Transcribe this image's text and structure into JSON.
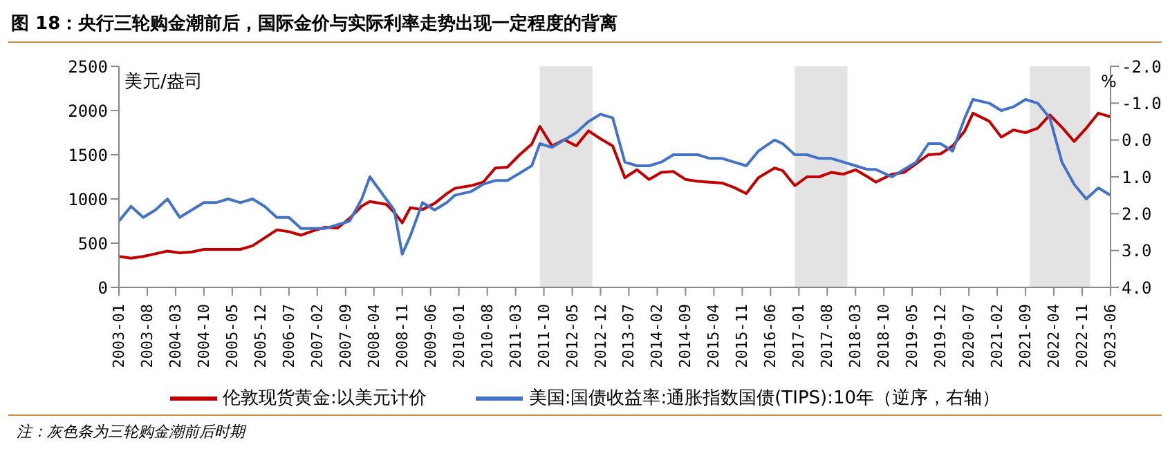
{
  "chart_data": {
    "type": "line",
    "title": "图 18：央行三轮购金潮前后，国际金价与实际利率走势出现一定程度的背离",
    "ylabel": "美元/盎司",
    "y2label": "%",
    "x": [
      "2003-01",
      "2003-04",
      "2003-07",
      "2003-10",
      "2004-01",
      "2004-04",
      "2004-07",
      "2004-10",
      "2005-01",
      "2005-04",
      "2005-07",
      "2005-10",
      "2006-01",
      "2006-04",
      "2006-07",
      "2006-10",
      "2007-01",
      "2007-04",
      "2007-07",
      "2007-10",
      "2008-01",
      "2008-03",
      "2008-07",
      "2008-09",
      "2008-11",
      "2009-01",
      "2009-04",
      "2009-07",
      "2009-10",
      "2009-12",
      "2010-04",
      "2010-07",
      "2010-10",
      "2011-01",
      "2011-04",
      "2011-07",
      "2011-09",
      "2011-12",
      "2012-03",
      "2012-06",
      "2012-09",
      "2012-12",
      "2013-03",
      "2013-06",
      "2013-09",
      "2013-12",
      "2014-03",
      "2014-06",
      "2014-09",
      "2014-12",
      "2015-03",
      "2015-06",
      "2015-09",
      "2015-12",
      "2016-03",
      "2016-07",
      "2016-09",
      "2016-12",
      "2017-03",
      "2017-06",
      "2017-09",
      "2017-12",
      "2018-03",
      "2018-06",
      "2018-08",
      "2018-12",
      "2019-03",
      "2019-06",
      "2019-09",
      "2019-12",
      "2020-03",
      "2020-06",
      "2020-08",
      "2020-12",
      "2021-03",
      "2021-06",
      "2021-09",
      "2021-12",
      "2022-03",
      "2022-06",
      "2022-09",
      "2022-12",
      "2023-03",
      "2023-06"
    ],
    "series": [
      {
        "name": "伦敦现货黄金:以美元计价",
        "color": "#c00000",
        "values": [
          350,
          330,
          350,
          380,
          410,
          390,
          400,
          430,
          430,
          430,
          430,
          470,
          560,
          650,
          630,
          590,
          640,
          680,
          670,
          780,
          920,
          970,
          940,
          850,
          730,
          900,
          880,
          950,
          1060,
          1120,
          1150,
          1190,
          1350,
          1360,
          1500,
          1620,
          1820,
          1600,
          1670,
          1600,
          1770,
          1680,
          1600,
          1240,
          1330,
          1220,
          1300,
          1310,
          1220,
          1200,
          1190,
          1180,
          1130,
          1060,
          1240,
          1350,
          1320,
          1150,
          1250,
          1250,
          1300,
          1280,
          1330,
          1250,
          1190,
          1280,
          1300,
          1400,
          1500,
          1510,
          1600,
          1770,
          1970,
          1880,
          1700,
          1780,
          1750,
          1800,
          1950,
          1810,
          1650,
          1800,
          1970,
          1930
        ]
      },
      {
        "name": "美国:国债收益率:通胀指数国债(TIPS):10年（逆序，右轴）",
        "color": "#4472c4",
        "axis": "y2",
        "values": [
          2.2,
          1.8,
          2.1,
          1.9,
          1.6,
          2.1,
          1.9,
          1.7,
          1.7,
          1.6,
          1.7,
          1.6,
          1.8,
          2.1,
          2.1,
          2.4,
          2.4,
          2.4,
          2.3,
          2.2,
          1.6,
          1.0,
          1.6,
          1.9,
          3.1,
          2.6,
          1.7,
          1.9,
          1.7,
          1.5,
          1.4,
          1.2,
          1.1,
          1.1,
          0.9,
          0.7,
          0.1,
          0.2,
          0.0,
          -0.2,
          -0.5,
          -0.7,
          -0.6,
          0.6,
          0.7,
          0.7,
          0.6,
          0.4,
          0.4,
          0.4,
          0.5,
          0.5,
          0.6,
          0.7,
          0.3,
          0.0,
          0.1,
          0.4,
          0.4,
          0.5,
          0.5,
          0.6,
          0.7,
          0.8,
          0.8,
          1.0,
          0.8,
          0.6,
          0.1,
          0.1,
          0.3,
          -0.6,
          -1.1,
          -1.0,
          -0.8,
          -0.9,
          -1.1,
          -1.0,
          -0.6,
          0.6,
          1.2,
          1.6,
          1.3,
          1.5
        ]
      }
    ],
    "xlim": [
      "2003-01",
      "2023-06"
    ],
    "xticks": [
      "2003-01",
      "2003-08",
      "2004-03",
      "2004-10",
      "2005-05",
      "2005-12",
      "2006-07",
      "2007-02",
      "2007-09",
      "2008-04",
      "2008-11",
      "2009-06",
      "2010-01",
      "2010-08",
      "2011-03",
      "2011-10",
      "2012-05",
      "2012-12",
      "2013-07",
      "2014-02",
      "2014-09",
      "2015-04",
      "2015-11",
      "2016-06",
      "2017-01",
      "2017-08",
      "2018-03",
      "2018-10",
      "2019-05",
      "2019-12",
      "2020-07",
      "2021-02",
      "2021-09",
      "2022-04",
      "2022-11",
      "2023-06"
    ],
    "ylim": [
      0,
      2500
    ],
    "yticks": [
      0,
      500,
      1000,
      1500,
      2000,
      2500
    ],
    "y2lim": [
      4,
      -2
    ],
    "y2ticks": [
      {
        "value": -2,
        "label": "-2.0"
      },
      {
        "value": -1,
        "label": "-1.0"
      },
      {
        "value": 0,
        "label": "0.0"
      },
      {
        "value": 1,
        "label": "1.0"
      },
      {
        "value": 2,
        "label": "2.0"
      },
      {
        "value": 3,
        "label": "3.0"
      },
      {
        "value": 4,
        "label": "4.0"
      }
    ],
    "bands": [
      {
        "axis": "x",
        "from": "2011-09",
        "to": "2012-10",
        "color": "#e3e3e3"
      },
      {
        "axis": "x",
        "from": "2016-12",
        "to": "2018-01",
        "color": "#e3e3e3"
      },
      {
        "axis": "x",
        "from": "2021-10",
        "to": "2023-01",
        "color": "#e3e3e3"
      }
    ],
    "legend": "bottom",
    "annotations": [
      "注：灰色条为三轮购金潮前后时期"
    ]
  }
}
